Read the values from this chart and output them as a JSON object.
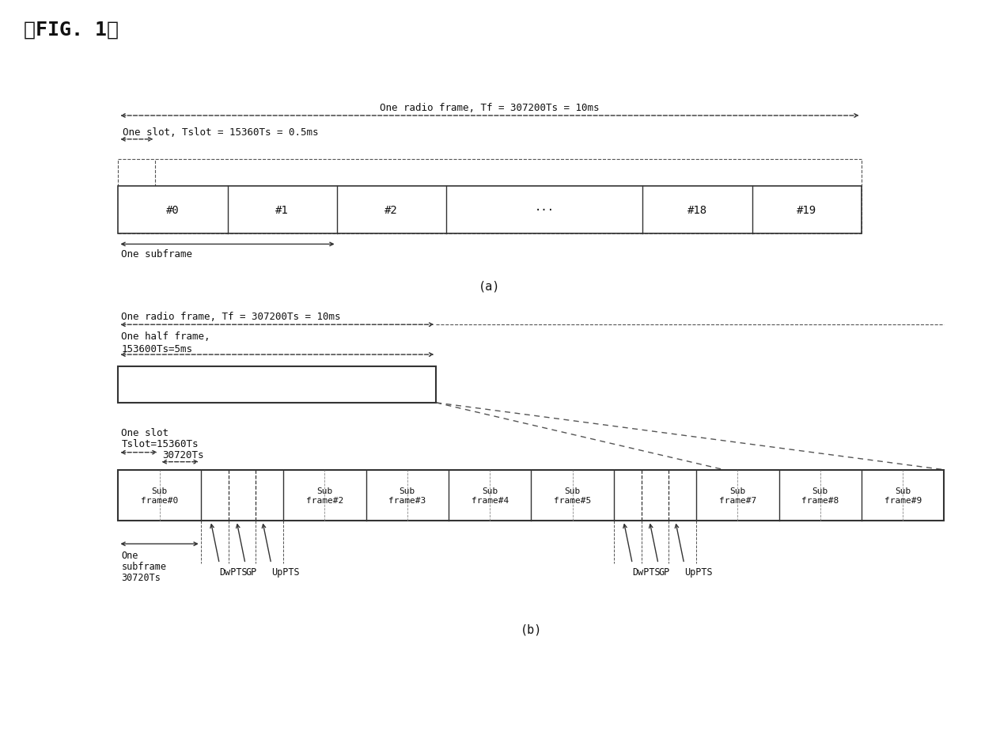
{
  "title": "【FIG. 1】",
  "bg_color": "#ffffff",
  "text_color": "#111111",
  "fig_width": 12.4,
  "fig_height": 9.54,
  "dpi": 100,
  "part_a": {
    "label": "(a)",
    "radio_frame_label": "One radio frame, Tf = 307200Ts = 10ms",
    "slot_label": "One slot, Tslot = 15360Ts = 0.5ms",
    "subframe_label": "One subframe",
    "slots": [
      "#0",
      "#1",
      "#2",
      "···",
      "#18",
      "#19"
    ],
    "slot_widths": [
      1,
      1,
      1,
      1.8,
      1,
      1
    ]
  },
  "part_b": {
    "label": "(b)",
    "radio_frame_label": "One radio frame, Tf = 307200Ts = 10ms",
    "half_frame_label_1": "One half frame,",
    "half_frame_label_2": "153600Ts=5ms",
    "slot_label_1": "One slot",
    "slot_label_2": "Tslot=15360Ts",
    "subframe_30720": "30720Ts",
    "one_subframe_label_1": "One",
    "one_subframe_label_2": "subframe",
    "one_subframe_label_3": "30720Ts",
    "sf_labels": [
      "Sub\nframe#0",
      "",
      "Sub\nframe#2",
      "Sub\nframe#3",
      "Sub\nframe#4",
      "Sub\nframe#5",
      "",
      "Sub\nframe#7",
      "Sub\nframe#8",
      "Sub\nframe#9"
    ],
    "special_sf": [
      1,
      6
    ],
    "ann_left": [
      "DwPTS",
      "GP",
      "UpPTS"
    ],
    "ann_right": [
      "DwPTS",
      "GP",
      "UpPTS"
    ]
  }
}
